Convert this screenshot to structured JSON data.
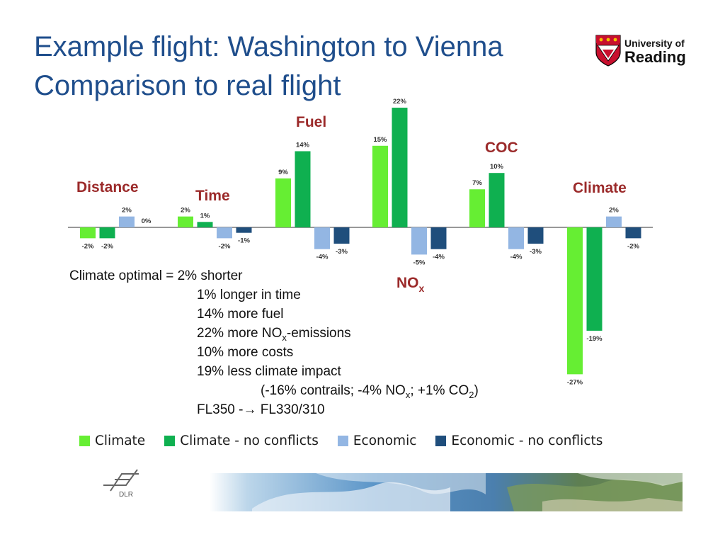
{
  "slide": {
    "title_line1": "Example flight: Washington to Vienna",
    "title_line2": "Comparison to real flight",
    "logo": {
      "line1": "University of",
      "line2": "Reading"
    },
    "dlr_logo_text": "DLR",
    "summary": {
      "lead": "Climate optimal = 2% shorter",
      "lines": [
        {
          "pre": "1% longer in time"
        },
        {
          "pre": "14% more fuel"
        },
        {
          "pre": "22% more NO",
          "sub": "x",
          "post": "-emissions"
        },
        {
          "pre": "10% more costs"
        },
        {
          "pre": "19% less climate impact"
        }
      ],
      "detail": {
        "pre": "(-16% contrails; -4% NO",
        "sub1": "x",
        "mid": "; +1% CO",
        "sub2": "2",
        "post": ")"
      },
      "fl": "FL350 -→ FL330/310"
    }
  },
  "chart_data": {
    "type": "bar",
    "categories": [
      "Distance",
      "Time",
      "Fuel",
      "NOx",
      "COC",
      "Climate"
    ],
    "category_labels": [
      {
        "text": "Distance"
      },
      {
        "text": "Time"
      },
      {
        "text": "Fuel"
      },
      {
        "text": "NO",
        "sub": "x"
      },
      {
        "text": "COC"
      },
      {
        "text": "Climate"
      }
    ],
    "series": [
      {
        "name": "Climate",
        "color": "#66ee33",
        "values": [
          -2,
          2,
          9,
          15,
          7,
          -27
        ]
      },
      {
        "name": "Climate - no conflicts",
        "color": "#0fb050",
        "values": [
          -2,
          1,
          14,
          22,
          10,
          -19
        ]
      },
      {
        "name": "Economic",
        "color": "#93b6e3",
        "values": [
          2,
          -2,
          -4,
          -5,
          -4,
          2
        ]
      },
      {
        "name": "Economic - no conflicts",
        "color": "#1f4e7c",
        "values": [
          0,
          -1,
          -3,
          -4,
          -3,
          -2
        ]
      }
    ],
    "data_labels": [
      [
        "-2%",
        "2%",
        "9%",
        "15%",
        "7%",
        "-27%"
      ],
      [
        "-2%",
        "1%",
        "14%",
        "22%",
        "10%",
        "-19%"
      ],
      [
        "2%",
        "-2%",
        "-4%",
        "-5%",
        "-4%",
        "2%"
      ],
      [
        "0%",
        "-1%",
        "-3%",
        "-4%",
        "-3%",
        "-2%"
      ]
    ],
    "unit": "%",
    "ylim": [
      -27,
      22
    ],
    "grid": false,
    "legend_position": "bottom"
  }
}
